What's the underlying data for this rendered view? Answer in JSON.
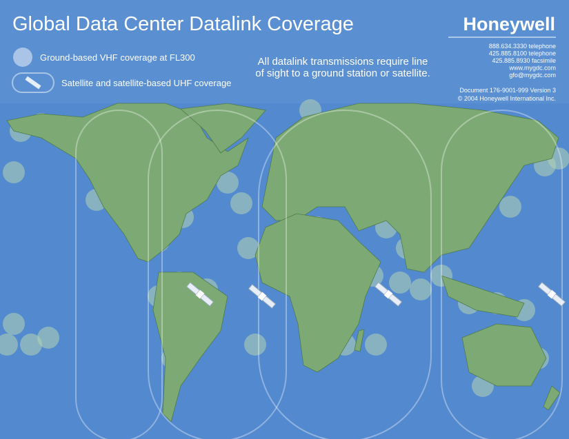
{
  "header": {
    "title": "Global Data Center Datalink Coverage",
    "brand": "Honeywell"
  },
  "legend": {
    "items": [
      "Ground-based VHF coverage at FL300",
      "Satellite and satellite-based UHF coverage"
    ]
  },
  "note": {
    "lines": [
      "All datalink transmissions require line",
      "of sight to a ground station or satellite."
    ]
  },
  "contact": {
    "lines": [
      "888.634.3330 telephone",
      "425.885.8100 telephone",
      "425.885.8930 facsimile",
      "www.mygdc.com",
      "gfo@mygdc.com"
    ]
  },
  "document": {
    "lines": [
      "Document 176-9001-999  Version 3",
      "© 2004 Honeywell International Inc."
    ]
  }
}
